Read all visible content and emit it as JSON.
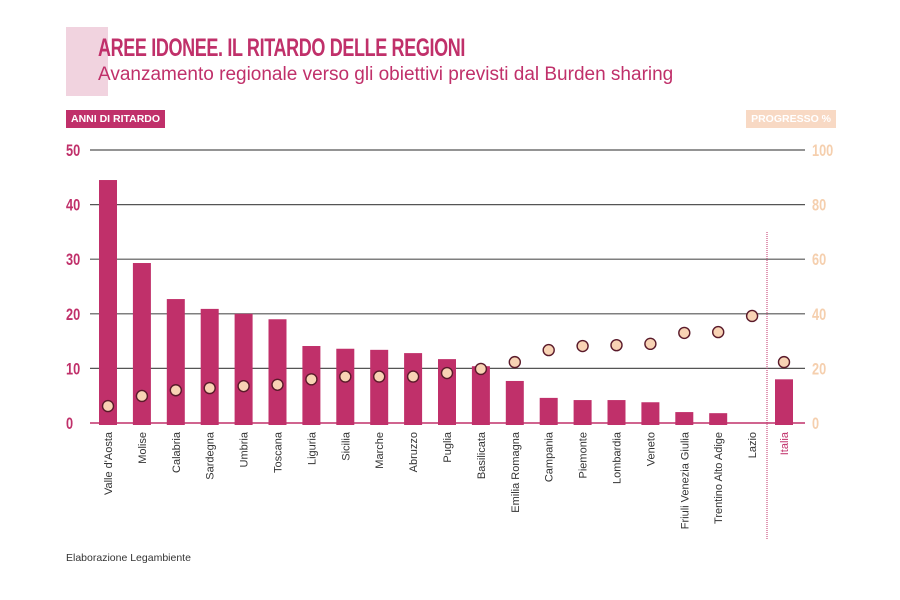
{
  "header": {
    "title": "AREE IDONEE. IL RITARDO DELLE REGIONI",
    "subtitle": "Avanzamento regionale verso gli obiettivi previsti dal Burden sharing"
  },
  "footer": {
    "source": "Elaborazione Legambiente"
  },
  "colors": {
    "bar": "#c0306a",
    "dot": "#f8d3b4",
    "dot_stroke": "#5a1a2a",
    "right_axis": "#f5cfae",
    "grid": "#555555"
  },
  "chart_data": {
    "type": "bar",
    "title": "AREE IDONEE. IL RITARDO DELLE REGIONI",
    "ylabel": "ANNI DI RITARDO",
    "y2label": "PROGRESSO %",
    "ylim": [
      0,
      50
    ],
    "y2lim": [
      0,
      100
    ],
    "yticks": [
      "0",
      "10",
      "20",
      "30",
      "40",
      "50"
    ],
    "y2ticks": [
      "0",
      "20",
      "40",
      "60",
      "80",
      "100"
    ],
    "grid": true,
    "categories": [
      "Valle d'Aosta",
      "Molise",
      "Calabria",
      "Sardegna",
      "Umbria",
      "Toscana",
      "Liguria",
      "Sicilia",
      "Marche",
      "Abruzzo",
      "Puglia",
      "Basilicata",
      "Emilia Romagna",
      "Campania",
      "Piemonte",
      "Lombardia",
      "Veneto",
      "Friuli Venezia Giulia",
      "Trentino Alto Adige",
      "Lazio",
      "Italia"
    ],
    "series": [
      {
        "name": "Anni di ritardo",
        "type": "bar",
        "axis": "left",
        "values": [
          44.5,
          29.3,
          22.7,
          20.9,
          20.0,
          19.0,
          14.1,
          13.6,
          13.4,
          12.8,
          11.7,
          10.4,
          7.7,
          4.6,
          4.2,
          4.2,
          3.8,
          2.0,
          1.8,
          0,
          8.0
        ]
      },
      {
        "name": "Progresso %",
        "type": "scatter",
        "axis": "right",
        "values": [
          6.2,
          9.9,
          12.0,
          12.8,
          13.5,
          14.0,
          16.0,
          17.0,
          17.0,
          17.0,
          18.3,
          19.8,
          22.3,
          26.7,
          28.2,
          28.5,
          29.0,
          33.0,
          33.3,
          39.2,
          22.3
        ]
      }
    ]
  }
}
